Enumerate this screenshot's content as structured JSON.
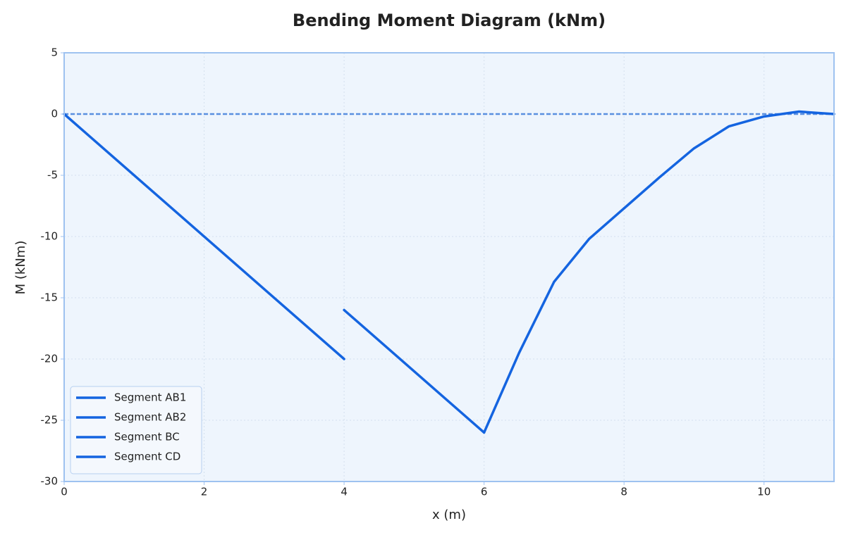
{
  "chart_data": {
    "type": "line",
    "title": "Bending Moment Diagram (kNm)",
    "x_label": "x (m)",
    "y_label": "M (kNm)",
    "xlim": [
      0,
      11
    ],
    "ylim": [
      -30,
      5
    ],
    "xticks": [
      0,
      2,
      4,
      6,
      8,
      10
    ],
    "yticks": [
      -30,
      -25,
      -20,
      -15,
      -10,
      -5,
      0,
      5
    ],
    "grid": true,
    "hline": 0,
    "legend": "lower left",
    "series": [
      {
        "name": "Segment AB1",
        "color": "#1464e0",
        "x": [
          0,
          4
        ],
        "values": [
          0,
          -20
        ]
      },
      {
        "name": "Segment AB2",
        "color": "#1464e0",
        "x": [
          4,
          6
        ],
        "values": [
          -16,
          -26
        ]
      },
      {
        "name": "Segment BC",
        "color": "#1464e0",
        "x": [
          6,
          6.5,
          7,
          7.5,
          8
        ],
        "values": [
          -26,
          -19.5,
          -13.7,
          -10.2,
          -7.7
        ]
      },
      {
        "name": "Segment CD",
        "color": "#1464e0",
        "x": [
          8,
          8.5,
          9,
          9.5,
          10,
          10.5,
          11
        ],
        "values": [
          -7.7,
          -5.2,
          -2.8,
          -1.0,
          -0.2,
          0.2,
          0
        ]
      }
    ]
  }
}
